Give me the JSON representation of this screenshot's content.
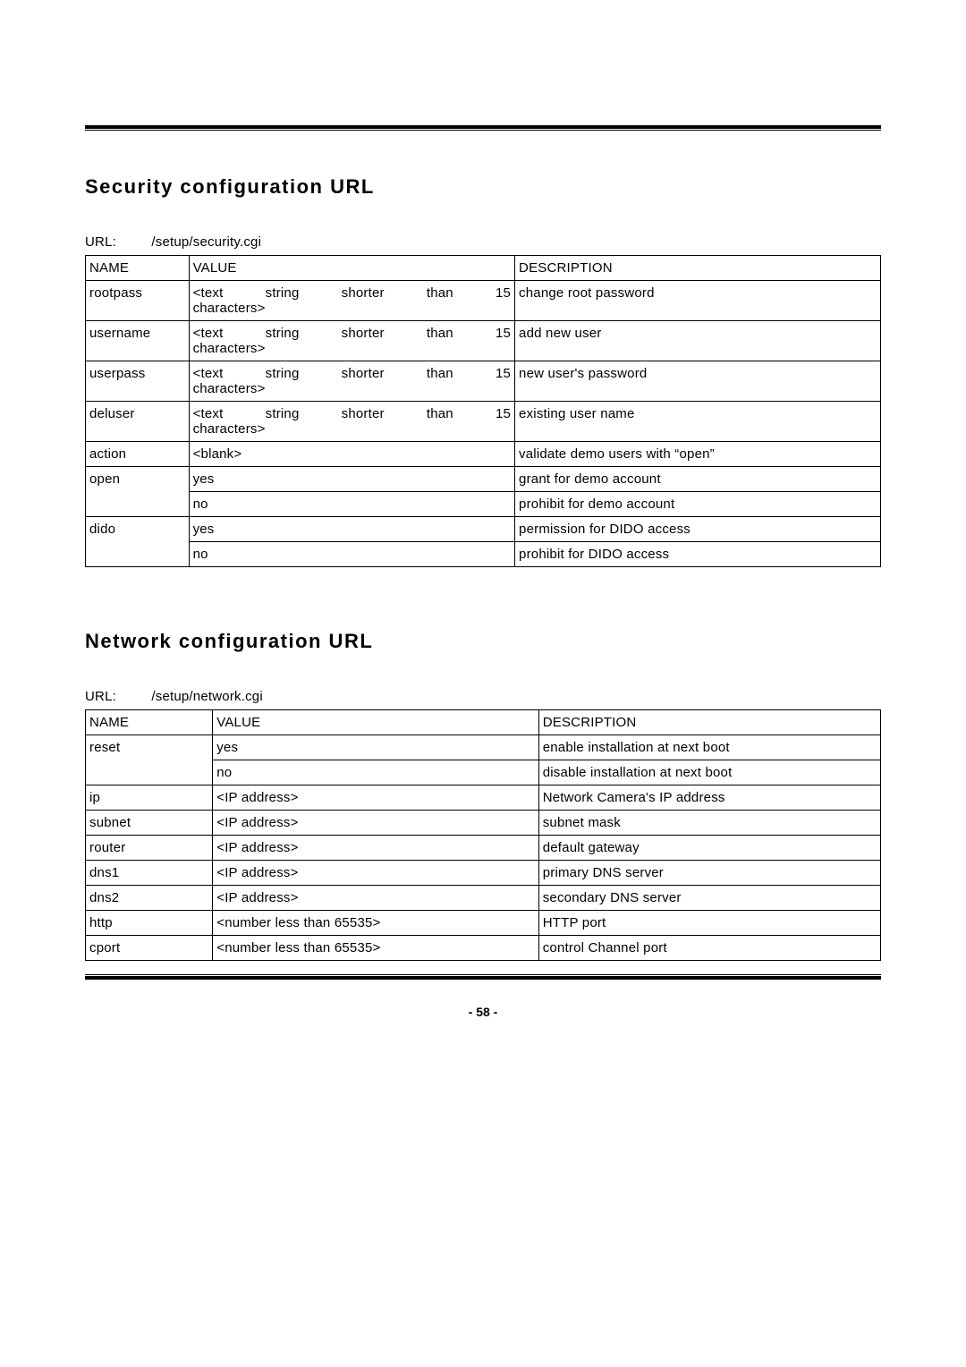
{
  "page_number": "- 58 -",
  "section1": {
    "heading": "Security configuration URL",
    "url_label": "URL:",
    "url_path": "/setup/security.cgi",
    "col_widths": [
      "13%",
      "41%",
      "46%"
    ],
    "headers": {
      "name": "NAME",
      "value": "VALUE",
      "desc": "DESCRIPTION"
    },
    "rows": [
      {
        "name": "rootpass",
        "value_line1": "<text string shorter than 15",
        "value_justify": true,
        "value_line2": "characters>",
        "desc": "change root password"
      },
      {
        "name": "username",
        "value_line1": "<text string shorter than 15",
        "value_justify": true,
        "value_line2": "characters>",
        "desc": "add new user"
      },
      {
        "name": "userpass",
        "value_line1": "<text string shorter than 15",
        "value_justify": true,
        "value_line2": "characters>",
        "desc": "new user's password"
      },
      {
        "name": "deluser",
        "value_line1": "<text string shorter than 15",
        "value_justify": true,
        "value_line2": "characters>",
        "desc": "existing user name"
      },
      {
        "name": "action",
        "value": "<blank>",
        "desc": "validate demo users with “open”"
      },
      {
        "name": "open",
        "name_rowspan": 2,
        "value": "yes",
        "desc": "grant for demo account"
      },
      {
        "value": "no",
        "desc": "prohibit for demo account"
      },
      {
        "name": "dido",
        "name_rowspan": 2,
        "value": "yes",
        "desc": "permission for DIDO access"
      },
      {
        "value": "no",
        "desc": "prohibit for DIDO access"
      }
    ]
  },
  "section2": {
    "heading": "Network configuration URL",
    "url_label": "URL:",
    "url_path": "/setup/network.cgi",
    "col_widths": [
      "16%",
      "41%",
      "43%"
    ],
    "headers": {
      "name": "NAME",
      "value": "VALUE",
      "desc": "DESCRIPTION"
    },
    "rows": [
      {
        "name": "reset",
        "name_rowspan": 2,
        "value": "yes",
        "desc": "enable installation at next boot"
      },
      {
        "value": "no",
        "desc": "disable installation at next boot"
      },
      {
        "name": "ip",
        "value": "<IP address>",
        "desc": "Network Camera's IP address"
      },
      {
        "name": "subnet",
        "value": "<IP address>",
        "desc": "subnet mask"
      },
      {
        "name": "router",
        "value": "<IP address>",
        "desc": "default gateway"
      },
      {
        "name": "dns1",
        "value": "<IP address>",
        "desc": "primary DNS server"
      },
      {
        "name": "dns2",
        "value": "<IP address>",
        "desc": "secondary DNS server"
      },
      {
        "name": "http",
        "value": "<number less than 65535>",
        "desc": "HTTP port"
      },
      {
        "name": "cport",
        "value": "<number less than 65535>",
        "desc": "control Channel port"
      }
    ]
  }
}
